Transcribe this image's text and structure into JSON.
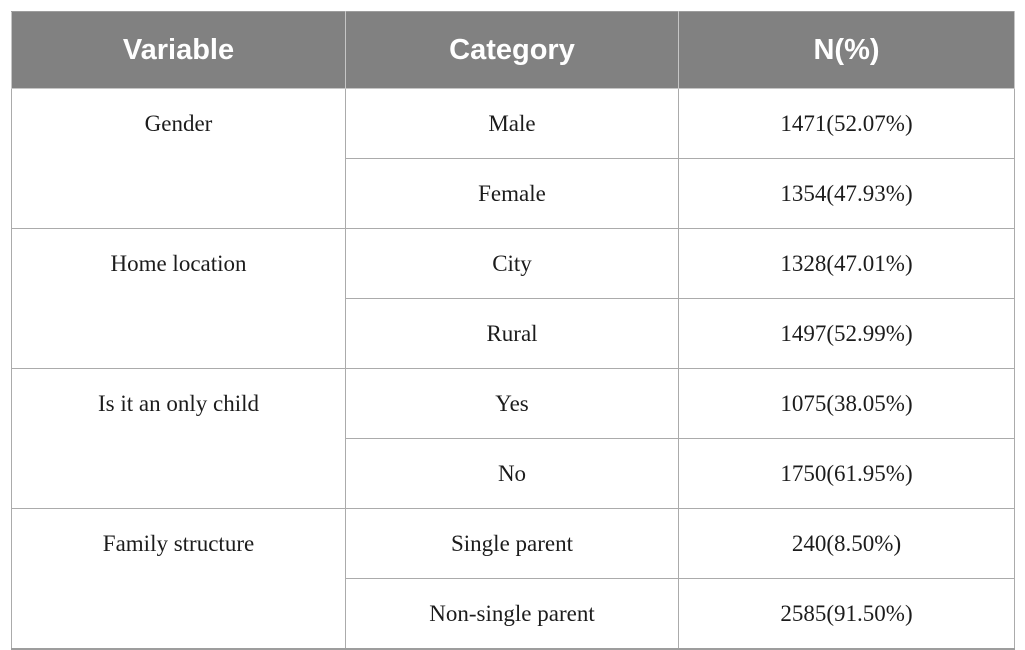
{
  "table": {
    "headers": {
      "variable": "Variable",
      "category": "Category",
      "n_pct": "N(%)"
    },
    "groups": [
      {
        "variable": "Gender",
        "rows": [
          {
            "category": "Male",
            "n": "1471(52.07%)"
          },
          {
            "category": "Female",
            "n": "1354(47.93%)"
          }
        ]
      },
      {
        "variable": "Home location",
        "rows": [
          {
            "category": "City",
            "n": "1328(47.01%)"
          },
          {
            "category": "Rural",
            "n": "1497(52.99%)"
          }
        ]
      },
      {
        "variable": "Is it an only child",
        "rows": [
          {
            "category": "Yes",
            "n": "1075(38.05%)"
          },
          {
            "category": "No",
            "n": "1750(61.95%)"
          }
        ]
      },
      {
        "variable": "Family structure",
        "rows": [
          {
            "category": "Single parent",
            "n": "240(8.50%)"
          },
          {
            "category": "Non-single parent",
            "n": "2585(91.50%)"
          }
        ]
      }
    ],
    "colors": {
      "header_bg": "#818181",
      "header_text": "#ffffff",
      "body_text": "#1c1c1c",
      "border": "#ababab",
      "page_bg": "#ffffff"
    }
  },
  "chart_data": {
    "type": "table",
    "columns": [
      "Variable",
      "Category",
      "N(%)"
    ],
    "rows": [
      [
        "Gender",
        "Male",
        "1471(52.07%)"
      ],
      [
        "Gender",
        "Female",
        "1354(47.93%)"
      ],
      [
        "Home location",
        "City",
        "1328(47.01%)"
      ],
      [
        "Home location",
        "Rural",
        "1497(52.99%)"
      ],
      [
        "Is it an only child",
        "Yes",
        "1075(38.05%)"
      ],
      [
        "Is it an only child",
        "No",
        "1750(61.95%)"
      ],
      [
        "Family structure",
        "Single parent",
        "240(8.50%)"
      ],
      [
        "Family structure",
        "Non-single parent",
        "2585(91.50%)"
      ]
    ]
  }
}
